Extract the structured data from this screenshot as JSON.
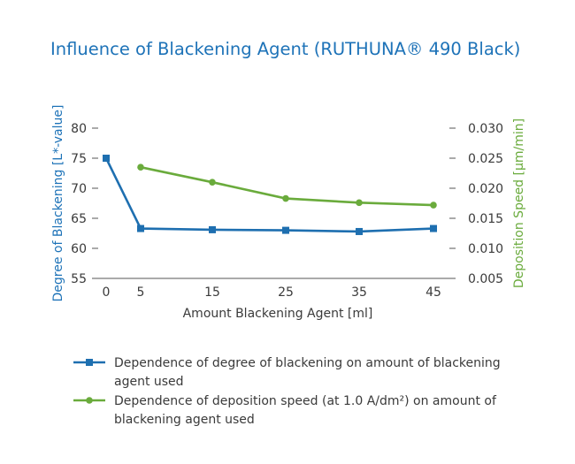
{
  "chart_data": {
    "type": "line",
    "title": "Influence of Blackening Agent (RUTHUNA® 490 Black)",
    "xlabel": "Amount Blackening Agent [ml]",
    "x_ticks": [
      "0",
      "5",
      "15",
      "25",
      "35",
      "45"
    ],
    "y_left": {
      "label": "Degree of Blackening [L*-value]",
      "ticks": [
        "80",
        "75",
        "70",
        "65",
        "60",
        "55"
      ],
      "range": [
        55,
        80
      ]
    },
    "y_right": {
      "label": "Deposition Speed [μm/min]",
      "ticks": [
        "0.030",
        "0.025",
        "0.020",
        "0.015",
        "0.010",
        "0.005"
      ],
      "range": [
        0.005,
        0.03
      ]
    },
    "series": [
      {
        "name": "Dependence of degree of blackening on amount of blackening agent used",
        "axis": "left",
        "color": "#1e6fb0",
        "marker": "square",
        "x": [
          0,
          5,
          15,
          25,
          35,
          45
        ],
        "y": [
          75.0,
          63.3,
          63.1,
          63.0,
          62.8,
          63.3
        ]
      },
      {
        "name": "Dependence of deposition speed (at 1.0 A/dm²) on amount of blackening agent used",
        "axis": "right",
        "color": "#6aab3c",
        "marker": "circle",
        "x": [
          5,
          15,
          25,
          35,
          45
        ],
        "y": [
          0.0235,
          0.021,
          0.0183,
          0.0176,
          0.0172
        ]
      }
    ],
    "legend_position": "bottom",
    "grid": false
  },
  "legend_lines": [
    [
      "Dependence of degree of blackening on amount of blackening",
      "agent used"
    ],
    [
      "Dependence of deposition speed (at 1.0 A/dm²) on amount of",
      "blackening agent used"
    ]
  ]
}
